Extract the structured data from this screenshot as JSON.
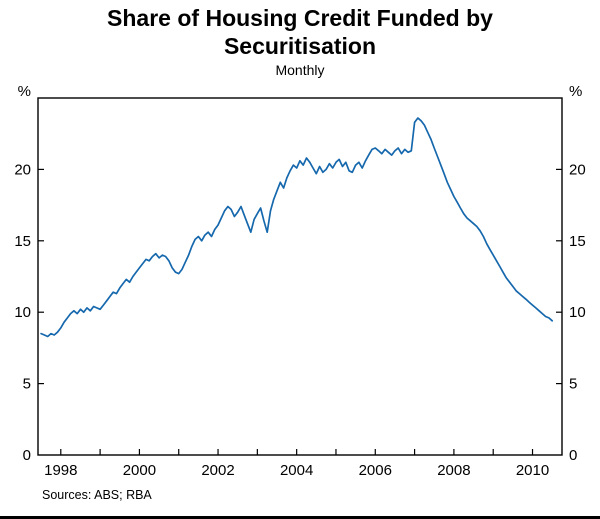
{
  "title": "Share of Housing Credit Funded by Securitisation",
  "subtitle": "Monthly",
  "sources": "Sources: ABS; RBA",
  "chart_data": {
    "type": "line",
    "title": "Share of Housing Credit Funded by Securitisation",
    "subtitle": "Monthly",
    "unit_label": "%",
    "line_color": "#1668ad",
    "axis_color": "#000000",
    "xlabel": "",
    "ylabel": "%",
    "xlim": [
      1997.42,
      2010.75
    ],
    "ylim": [
      0,
      25
    ],
    "yticks": [
      0,
      5,
      10,
      15,
      20
    ],
    "xticks_minor": [
      1998,
      1999,
      2000,
      2001,
      2002,
      2003,
      2004,
      2005,
      2006,
      2007,
      2008,
      2009,
      2010
    ],
    "xticks_labeled": [
      1998,
      2000,
      2002,
      2004,
      2006,
      2008,
      2010
    ],
    "grid": false,
    "legend": "none",
    "x_start": 1997.5,
    "x_step_years": 0.0833333,
    "values": [
      8.5,
      8.4,
      8.3,
      8.5,
      8.4,
      8.6,
      8.9,
      9.3,
      9.6,
      9.9,
      10.1,
      9.9,
      10.2,
      10.0,
      10.3,
      10.1,
      10.4,
      10.3,
      10.2,
      10.5,
      10.8,
      11.1,
      11.4,
      11.3,
      11.7,
      12.0,
      12.3,
      12.1,
      12.5,
      12.8,
      13.1,
      13.4,
      13.7,
      13.6,
      13.9,
      14.1,
      13.8,
      14.0,
      13.9,
      13.6,
      13.1,
      12.8,
      12.7,
      13.0,
      13.5,
      14.0,
      14.6,
      15.1,
      15.3,
      15.0,
      15.4,
      15.6,
      15.3,
      15.8,
      16.1,
      16.6,
      17.1,
      17.4,
      17.2,
      16.7,
      17.0,
      17.4,
      16.8,
      16.2,
      15.6,
      16.5,
      16.9,
      17.3,
      16.4,
      15.6,
      17.1,
      17.9,
      18.5,
      19.1,
      18.7,
      19.4,
      19.9,
      20.3,
      20.1,
      20.6,
      20.3,
      20.8,
      20.5,
      20.1,
      19.7,
      20.2,
      19.8,
      20.0,
      20.4,
      20.1,
      20.5,
      20.7,
      20.2,
      20.5,
      19.9,
      19.8,
      20.3,
      20.5,
      20.1,
      20.6,
      21.0,
      21.4,
      21.5,
      21.3,
      21.1,
      21.4,
      21.2,
      21.0,
      21.3,
      21.5,
      21.1,
      21.4,
      21.2,
      21.3,
      23.3,
      23.6,
      23.4,
      23.1,
      22.6,
      22.1,
      21.5,
      20.9,
      20.3,
      19.7,
      19.1,
      18.6,
      18.1,
      17.7,
      17.3,
      16.9,
      16.6,
      16.4,
      16.2,
      16.0,
      15.7,
      15.3,
      14.8,
      14.4,
      14.0,
      13.6,
      13.2,
      12.8,
      12.4,
      12.1,
      11.8,
      11.5,
      11.3,
      11.1,
      10.9,
      10.7,
      10.5,
      10.3,
      10.1,
      9.9,
      9.7,
      9.6,
      9.4
    ]
  }
}
